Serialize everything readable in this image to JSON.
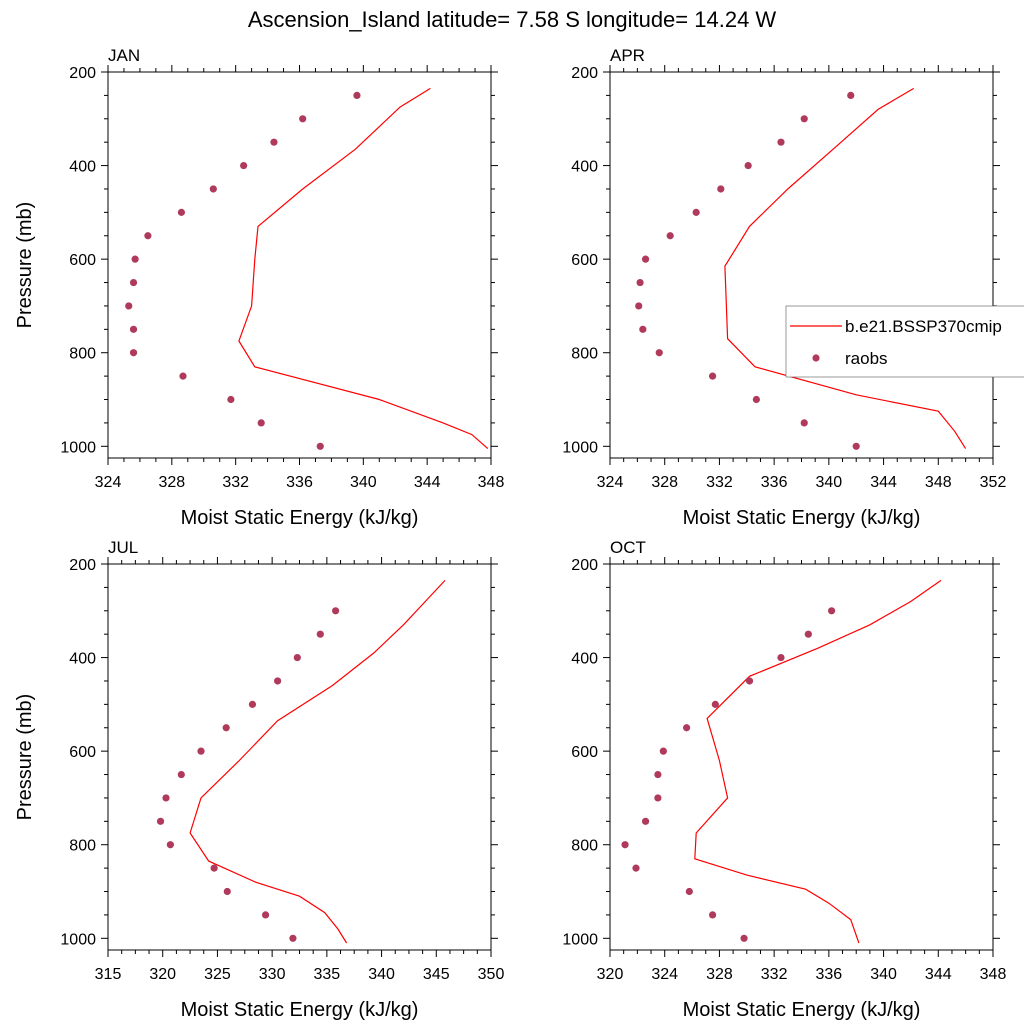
{
  "title": "Ascension_Island  latitude= 7.58 S longitude= 14.24 W",
  "legend": {
    "model_label": "b.e21.BSSP370cmip",
    "obs_label": "raobs",
    "line_color": "#ff0000",
    "marker_color": "#b03a5b"
  },
  "chart_data": [
    {
      "type": "scatter",
      "panel": "JAN",
      "xlabel": "Moist Static Energy (kJ/kg)",
      "ylabel": "Pressure (mb)",
      "xlim": [
        324,
        348
      ],
      "ylim": [
        200,
        1025
      ],
      "x_ticks": [
        324,
        328,
        332,
        336,
        340,
        344,
        348
      ],
      "y_ticks": [
        200,
        400,
        600,
        800,
        1000
      ],
      "model_line": {
        "x": [
          344.2,
          342.3,
          339.5,
          336.2,
          333.4,
          333.2,
          333.0,
          332.2,
          333.2,
          341.0,
          345.0,
          346.8,
          347.8
        ],
        "y": [
          235,
          275,
          365,
          450,
          530,
          600,
          700,
          775,
          830,
          900,
          950,
          975,
          1005
        ]
      },
      "raobs": {
        "x": [
          339.6,
          336.2,
          334.4,
          332.5,
          330.6,
          328.6,
          326.5,
          325.7,
          325.6,
          325.3,
          325.6,
          325.6,
          328.7,
          331.7,
          333.6,
          337.3
        ],
        "y": [
          250,
          300,
          350,
          400,
          450,
          500,
          550,
          600,
          650,
          700,
          750,
          800,
          850,
          900,
          950,
          1000
        ]
      }
    },
    {
      "type": "scatter",
      "panel": "APR",
      "xlabel": "Moist Static Energy (kJ/kg)",
      "ylabel": "",
      "xlim": [
        324,
        352
      ],
      "ylim": [
        200,
        1025
      ],
      "x_ticks": [
        324,
        328,
        332,
        336,
        340,
        344,
        348,
        352
      ],
      "y_ticks": [
        200,
        400,
        600,
        800,
        1000
      ],
      "model_line": {
        "x": [
          346.2,
          343.6,
          340.5,
          337.0,
          334.2,
          332.4,
          332.6,
          334.6,
          342.0,
          348.0,
          349.2,
          350.0
        ],
        "y": [
          235,
          280,
          360,
          450,
          530,
          615,
          770,
          830,
          890,
          925,
          968,
          1005
        ]
      },
      "raobs": {
        "x": [
          341.6,
          338.2,
          336.5,
          334.1,
          332.1,
          330.3,
          328.4,
          326.6,
          326.2,
          326.1,
          326.4,
          327.6,
          331.5,
          334.7,
          338.2,
          342.0
        ],
        "y": [
          250,
          300,
          350,
          400,
          450,
          500,
          550,
          600,
          650,
          700,
          750,
          800,
          850,
          900,
          950,
          1000
        ]
      }
    },
    {
      "type": "scatter",
      "panel": "JUL",
      "xlabel": "Moist Static Energy (kJ/kg)",
      "ylabel": "Pressure (mb)",
      "xlim": [
        315,
        350
      ],
      "ylim": [
        200,
        1025
      ],
      "x_ticks": [
        315,
        320,
        325,
        330,
        335,
        340,
        345,
        350
      ],
      "y_ticks": [
        200,
        400,
        600,
        800,
        1000
      ],
      "model_line": {
        "x": [
          345.8,
          344.2,
          342.0,
          339.3,
          335.5,
          330.5,
          327.0,
          323.5,
          322.5,
          324.2,
          328.5,
          332.5,
          334.8,
          336.0,
          336.8
        ],
        "y": [
          235,
          275,
          330,
          390,
          460,
          535,
          620,
          700,
          775,
          835,
          880,
          910,
          945,
          980,
          1010
        ]
      },
      "raobs": {
        "x": [
          335.8,
          334.4,
          332.3,
          330.5,
          328.2,
          325.8,
          323.5,
          321.7,
          320.3,
          319.8,
          320.7,
          324.7,
          325.9,
          329.4,
          331.9
        ],
        "y": [
          300,
          350,
          400,
          450,
          500,
          550,
          600,
          650,
          700,
          750,
          800,
          850,
          900,
          950,
          1000
        ]
      }
    },
    {
      "type": "scatter",
      "panel": "OCT",
      "xlabel": "Moist Static Energy (kJ/kg)",
      "ylabel": "",
      "xlim": [
        320,
        348
      ],
      "ylim": [
        200,
        1025
      ],
      "x_ticks": [
        320,
        324,
        328,
        332,
        336,
        340,
        344,
        348
      ],
      "y_ticks": [
        200,
        400,
        600,
        800,
        1000
      ],
      "model_line": {
        "x": [
          344.2,
          342.0,
          339.0,
          335.2,
          330.2,
          327.1,
          328.0,
          328.6,
          326.3,
          326.2,
          330.0,
          334.3,
          336.0,
          337.6,
          338.2
        ],
        "y": [
          235,
          280,
          330,
          380,
          440,
          530,
          620,
          700,
          775,
          830,
          865,
          895,
          925,
          960,
          1010
        ]
      },
      "raobs": {
        "x": [
          336.2,
          334.5,
          332.5,
          330.2,
          327.7,
          325.6,
          323.9,
          323.5,
          323.5,
          322.6,
          321.1,
          321.9,
          325.8,
          327.5,
          329.8
        ],
        "y": [
          300,
          350,
          400,
          450,
          500,
          550,
          600,
          650,
          700,
          750,
          800,
          850,
          900,
          950,
          1000
        ]
      }
    }
  ]
}
